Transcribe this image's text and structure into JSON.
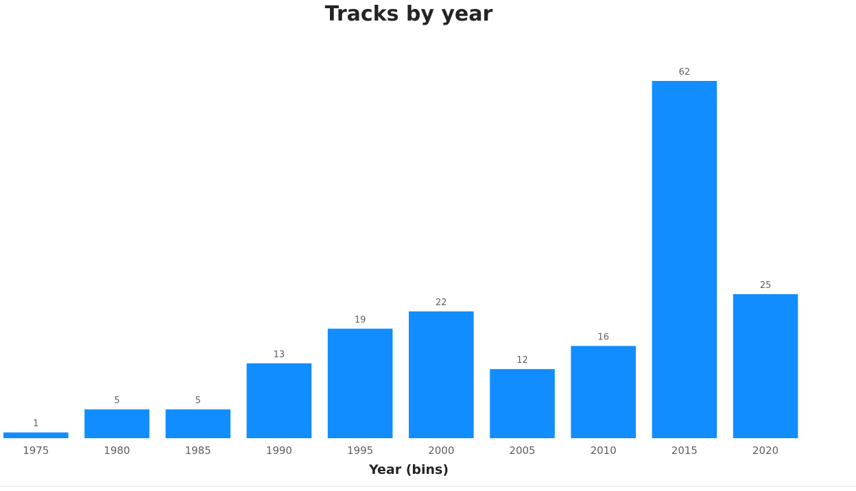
{
  "chart_data": {
    "type": "bar",
    "title": "Tracks by year",
    "xlabel": "Year (bins)",
    "ylabel": "",
    "categories": [
      "1975",
      "1980",
      "1985",
      "1990",
      "1995",
      "2000",
      "2005",
      "2010",
      "2015",
      "2020"
    ],
    "values": [
      1,
      5,
      5,
      13,
      19,
      22,
      12,
      16,
      62,
      25
    ],
    "ylim": [
      0,
      62
    ],
    "grid": false,
    "legend": "none",
    "bar_color": "#118DFF"
  }
}
